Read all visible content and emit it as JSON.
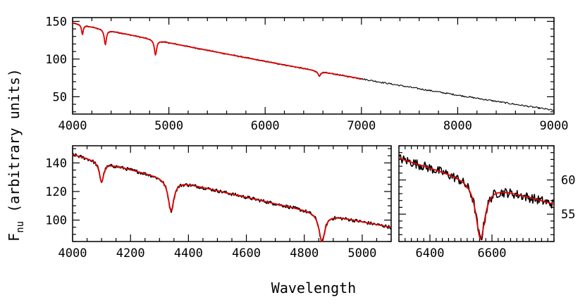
{
  "chart_data": [
    {
      "id": "top",
      "type": "line",
      "title": "",
      "xlim": [
        4000,
        9000
      ],
      "ylim": [
        27,
        155
      ],
      "xticks_major": [
        4000,
        5000,
        6000,
        7000,
        8000,
        9000
      ],
      "xtick_minor_step": 200,
      "yticks_major": [
        50,
        100,
        150
      ],
      "ytick_minor_step": 10,
      "ytick_labels_side": "left",
      "xtick_labels_side": "bottom",
      "continuum": {
        "x0": 4000,
        "y0": 148,
        "x1": 9000,
        "y1": 32,
        "curve": 0.92
      },
      "absorption_lines": [
        {
          "center": 4102,
          "depth": 13,
          "width": 10
        },
        {
          "center": 4340,
          "depth": 20,
          "width": 13
        },
        {
          "center": 4861,
          "depth": 20,
          "width": 14
        },
        {
          "center": 6563,
          "depth": 6,
          "width": 18
        }
      ],
      "series": [
        {
          "role": "observed",
          "color": "#000000",
          "x_range": [
            4000,
            9000
          ],
          "noise": 1.0
        },
        {
          "role": "model",
          "color": "#e00000",
          "x_range": [
            4000,
            7000
          ]
        }
      ]
    },
    {
      "id": "bottom-left",
      "type": "line",
      "xlim": [
        4000,
        5100
      ],
      "ylim": [
        85,
        152
      ],
      "xticks_major": [
        4000,
        4200,
        4400,
        4600,
        4800,
        5000
      ],
      "xtick_minor_step": 50,
      "yticks_major": [
        100,
        120,
        140
      ],
      "ytick_minor_step": 5,
      "ytick_labels_side": "left",
      "xtick_labels_side": "bottom",
      "continuum": {
        "x0": 4000,
        "y0": 146,
        "x1": 5100,
        "y1": 95,
        "curve": 0.95
      },
      "absorption_lines": [
        {
          "center": 4100,
          "depth": 14,
          "width": 9
        },
        {
          "center": 4340,
          "depth": 22,
          "width": 12
        },
        {
          "center": 4861,
          "depth": 20,
          "width": 12
        }
      ],
      "series": [
        {
          "role": "observed",
          "color": "#000000",
          "x_range": [
            4000,
            5100
          ],
          "noise": 1.2
        },
        {
          "role": "model",
          "color": "#e00000",
          "x_range": [
            4000,
            5100
          ]
        }
      ]
    },
    {
      "id": "bottom-right",
      "type": "line",
      "xlim": [
        6300,
        6800
      ],
      "ylim": [
        51,
        65
      ],
      "xticks_major": [
        6400,
        6600
      ],
      "xtick_minor_step": 20,
      "yticks_major": [
        55,
        60
      ],
      "ytick_minor_step": 1,
      "ytick_labels_side": "right",
      "xtick_labels_side": "bottom",
      "continuum": {
        "x0": 6300,
        "y0": 63.2,
        "x1": 6800,
        "y1": 56.5,
        "curve": 0.2
      },
      "absorption_lines": [
        {
          "center": 6563,
          "depth": 8.2,
          "width": 18
        }
      ],
      "series": [
        {
          "role": "observed",
          "color": "#000000",
          "x_range": [
            6300,
            6800
          ],
          "noise": 0.7
        },
        {
          "role": "model",
          "color": "#e00000",
          "x_range": [
            6300,
            6800
          ]
        }
      ]
    }
  ],
  "axis_labels": {
    "xlabel": "Wavelength",
    "ylabel_main": "F",
    "ylabel_sub": "nu",
    "ylabel_tail": " (arbitrary units)"
  },
  "colors": {
    "observed": "#000000",
    "model": "#e00000",
    "frame": "#000000",
    "background": "#ffffff"
  }
}
